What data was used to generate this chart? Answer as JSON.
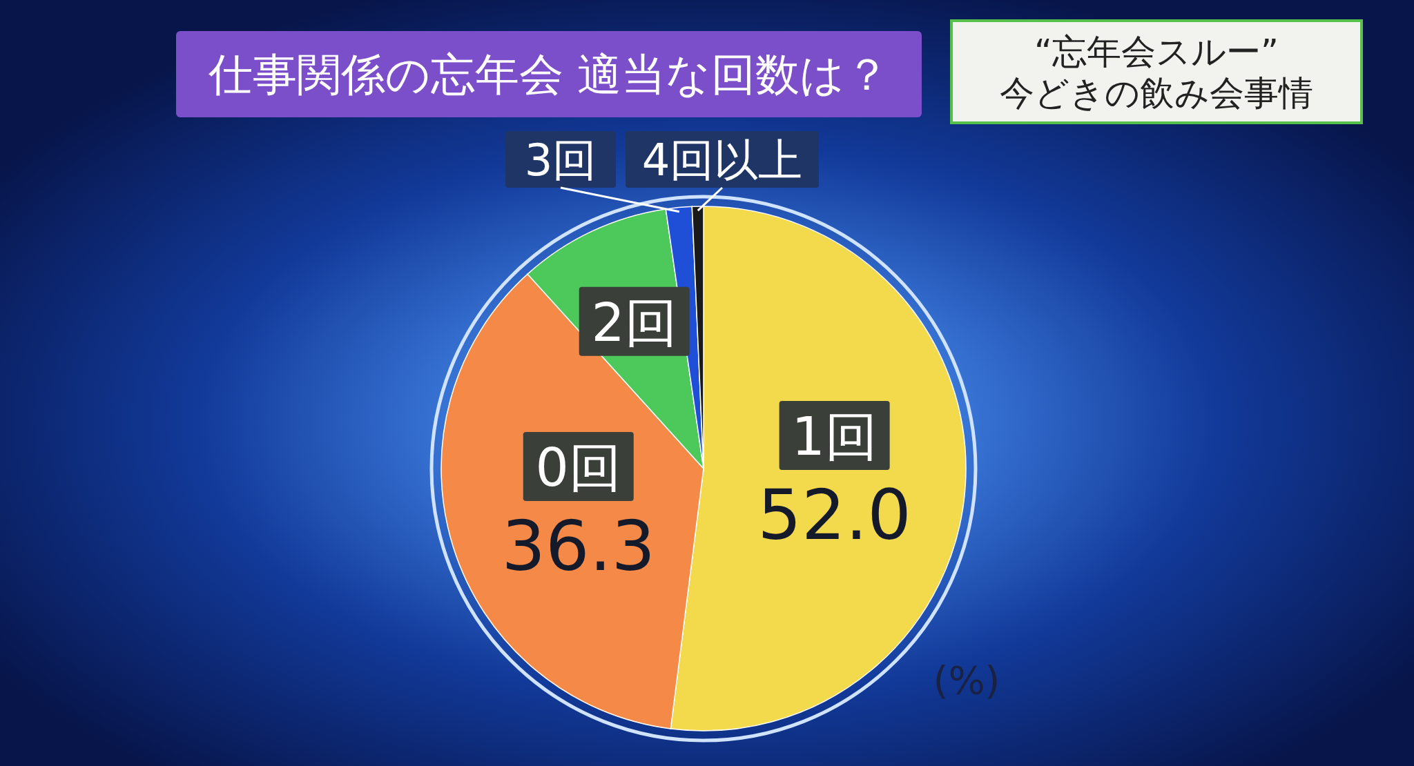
{
  "chart_data": {
    "type": "pie",
    "title": "仕事関係の忘年会 適当な回数は？",
    "subtitle": "“忘年会スルー” 今どきの飲み会事情",
    "categories": [
      "1回",
      "0回",
      "2回",
      "3回",
      "4回以上"
    ],
    "values": [
      52.0,
      36.3,
      9.4,
      1.6,
      0.7
    ],
    "colors": [
      "#f3d94c",
      "#f58a48",
      "#4cc95a",
      "#1f4fd6",
      "#1a1a1a"
    ],
    "value_labels": [
      "52.0",
      "36.3",
      null,
      null,
      null
    ],
    "annotations": [
      "(%)"
    ]
  }
}
